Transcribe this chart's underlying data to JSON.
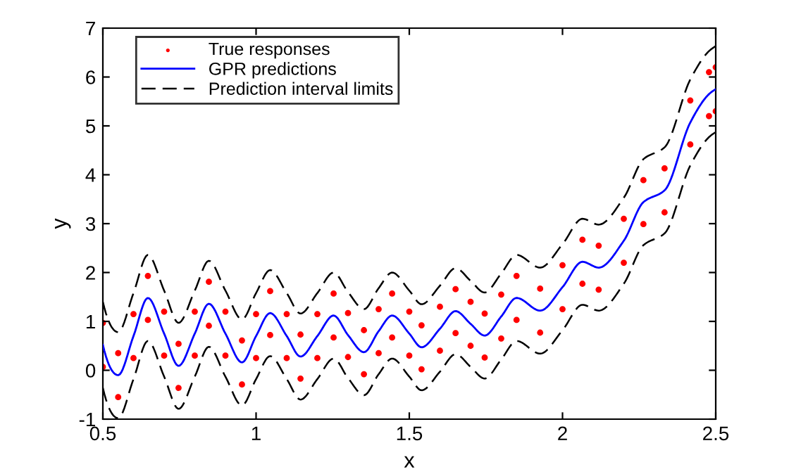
{
  "chart_data": {
    "type": "line",
    "xlabel": "x",
    "ylabel": "y",
    "xlim": [
      0.5,
      2.5
    ],
    "ylim": [
      -1,
      7
    ],
    "xticks": [
      0.5,
      1,
      1.5,
      2,
      2.5
    ],
    "yticks": [
      -1,
      0,
      1,
      2,
      3,
      4,
      5,
      6,
      7
    ],
    "grid": false,
    "legend": "top left",
    "series": [
      {
        "name": "True responses",
        "type": "scatter",
        "marker": "circle",
        "color": "#ff0000",
        "x": [
          0.5,
          0.55,
          0.6,
          0.647,
          0.7,
          0.747,
          0.8,
          0.846,
          0.9,
          0.954,
          1.0,
          1.046,
          1.1,
          1.145,
          1.2,
          1.253,
          1.3,
          1.352,
          1.4,
          1.444,
          1.5,
          1.54,
          1.6,
          1.651,
          1.7,
          1.746,
          1.8,
          1.85,
          1.927,
          2.0,
          2.065,
          2.118,
          2.2,
          2.264,
          2.333,
          2.417,
          2.478,
          2.5,
          0.5,
          0.55,
          0.6,
          0.647,
          0.7,
          0.747,
          0.8,
          0.846,
          0.9,
          0.954,
          1.0,
          1.046,
          1.1,
          1.145,
          1.2,
          1.253,
          1.3,
          1.352,
          1.4,
          1.444,
          1.5,
          1.54,
          1.6,
          1.651,
          1.7,
          1.746,
          1.8,
          1.85,
          1.927,
          2.0,
          2.065,
          2.118,
          2.2,
          2.264,
          2.333,
          2.417,
          2.478,
          2.5
        ],
        "values": [
          0.97,
          0.35,
          1.15,
          1.93,
          1.2,
          0.54,
          1.2,
          1.81,
          1.2,
          0.61,
          1.15,
          1.62,
          1.15,
          0.73,
          1.15,
          1.57,
          1.17,
          0.82,
          1.25,
          1.57,
          1.2,
          0.92,
          1.3,
          1.66,
          1.4,
          1.16,
          1.55,
          1.93,
          1.67,
          2.15,
          2.67,
          2.55,
          3.1,
          3.89,
          4.13,
          5.52,
          6.1,
          6.2,
          0.07,
          -0.55,
          0.25,
          1.03,
          0.3,
          -0.36,
          0.3,
          0.91,
          0.3,
          -0.29,
          0.25,
          0.72,
          0.25,
          -0.17,
          0.25,
          0.67,
          0.27,
          -0.08,
          0.35,
          0.67,
          0.3,
          0.02,
          0.4,
          0.76,
          0.5,
          0.26,
          0.65,
          1.03,
          0.77,
          1.25,
          1.77,
          1.65,
          2.2,
          2.99,
          3.23,
          4.62,
          5.2,
          5.3
        ]
      },
      {
        "name": "GPR predictions",
        "marker": "none",
        "line_style": "solid",
        "color": "#0000ff",
        "x": [
          0.5,
          0.55,
          0.6,
          0.647,
          0.7,
          0.747,
          0.8,
          0.846,
          0.9,
          0.954,
          1.0,
          1.046,
          1.1,
          1.145,
          1.2,
          1.253,
          1.3,
          1.352,
          1.4,
          1.444,
          1.5,
          1.54,
          1.6,
          1.651,
          1.7,
          1.746,
          1.8,
          1.85,
          1.927,
          2.0,
          2.065,
          2.118,
          2.2,
          2.264,
          2.333,
          2.417,
          2.478,
          2.5
        ],
        "values": [
          0.52,
          -0.1,
          0.7,
          1.48,
          0.75,
          0.09,
          0.75,
          1.36,
          0.75,
          0.16,
          0.7,
          1.17,
          0.7,
          0.28,
          0.7,
          1.12,
          0.72,
          0.37,
          0.8,
          1.12,
          0.75,
          0.47,
          0.85,
          1.21,
          0.95,
          0.71,
          1.1,
          1.48,
          1.22,
          1.7,
          2.22,
          2.1,
          2.65,
          3.44,
          3.68,
          5.07,
          5.65,
          5.75
        ]
      },
      {
        "name": "Prediction interval limits",
        "marker": "none",
        "line_style": "dashed",
        "color": "#000000",
        "x": [
          0.5,
          0.55,
          0.6,
          0.647,
          0.7,
          0.747,
          0.8,
          0.846,
          0.9,
          0.954,
          1.0,
          1.046,
          1.1,
          1.145,
          1.2,
          1.253,
          1.3,
          1.352,
          1.4,
          1.444,
          1.5,
          1.54,
          1.6,
          1.651,
          1.7,
          1.746,
          1.8,
          1.85,
          1.927,
          2.0,
          2.065,
          2.118,
          2.2,
          2.264,
          2.333,
          2.417,
          2.478,
          2.5
        ],
        "values": [
          1.4,
          0.78,
          1.58,
          2.36,
          1.63,
          0.97,
          1.63,
          2.24,
          1.63,
          1.04,
          1.58,
          2.05,
          1.58,
          1.16,
          1.58,
          2.0,
          1.6,
          1.25,
          1.68,
          2.0,
          1.63,
          1.35,
          1.73,
          2.09,
          1.83,
          1.59,
          1.98,
          2.36,
          2.1,
          2.58,
          3.1,
          2.98,
          3.53,
          4.32,
          4.56,
          5.95,
          6.53,
          6.63
        ]
      },
      {
        "marker": "none",
        "line_style": "dashed",
        "color": "#000000",
        "x": [
          0.5,
          0.55,
          0.6,
          0.647,
          0.7,
          0.747,
          0.8,
          0.846,
          0.9,
          0.954,
          1.0,
          1.046,
          1.1,
          1.145,
          1.2,
          1.253,
          1.3,
          1.352,
          1.4,
          1.444,
          1.5,
          1.54,
          1.6,
          1.651,
          1.7,
          1.746,
          1.8,
          1.85,
          1.927,
          2.0,
          2.065,
          2.118,
          2.2,
          2.264,
          2.333,
          2.417,
          2.478,
          2.5
        ],
        "values": [
          -0.36,
          -0.98,
          -0.18,
          0.6,
          -0.13,
          -0.79,
          -0.13,
          0.48,
          -0.13,
          -0.72,
          -0.18,
          0.29,
          -0.18,
          -0.6,
          -0.18,
          0.24,
          -0.16,
          -0.51,
          -0.08,
          0.24,
          -0.13,
          -0.41,
          -0.03,
          0.33,
          0.07,
          -0.17,
          0.22,
          0.6,
          0.34,
          0.82,
          1.34,
          1.22,
          1.77,
          2.56,
          2.8,
          4.19,
          4.77,
          4.87
        ]
      }
    ]
  }
}
